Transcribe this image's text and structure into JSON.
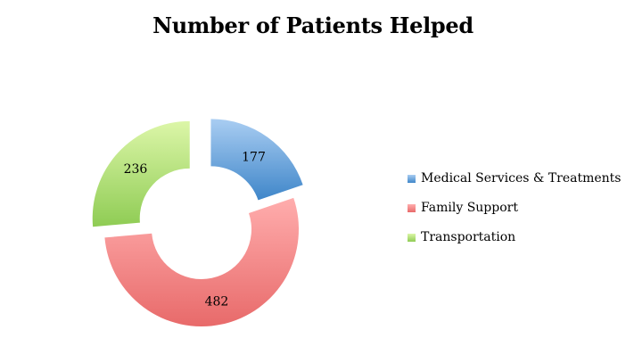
{
  "chart_data": {
    "type": "pie",
    "title": "Number of Patients Helped",
    "categories": [
      "Medical Services & Treatments",
      "Family Support",
      "Transportation"
    ],
    "values": [
      177,
      482,
      236
    ],
    "colors": {
      "Medical Services & Treatments": [
        "#a9cdf2",
        "#3f86c9"
      ],
      "Family Support": [
        "#ffadad",
        "#e86a6a"
      ],
      "Transportation": [
        "#dcf6a8",
        "#8fcc54"
      ]
    },
    "style": "exploded doughnut",
    "legend_position": "right"
  }
}
